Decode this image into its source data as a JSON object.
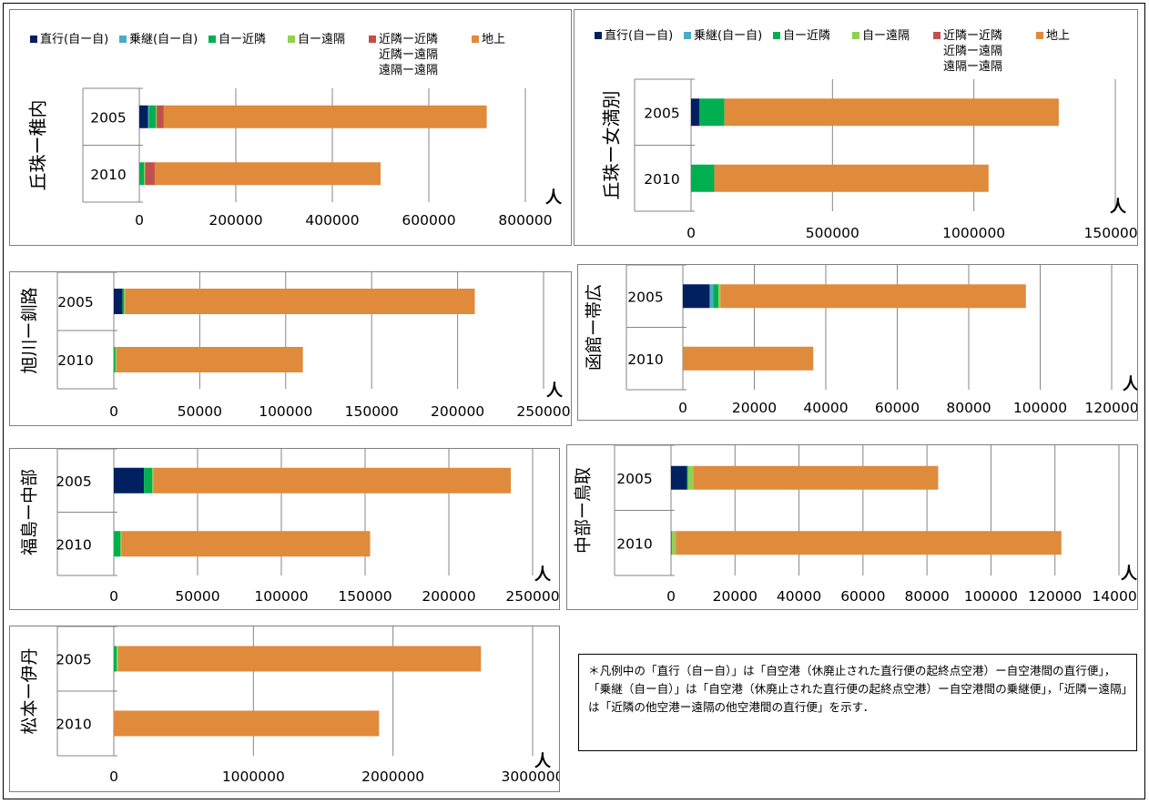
{
  "legend": {
    "items": [
      {
        "label": "直行(自ー自)",
        "color": "#002060"
      },
      {
        "label": "乗継(自ー自)",
        "color": "#4bacc6"
      },
      {
        "label": "自ー近隣",
        "color": "#00b050"
      },
      {
        "label": "自ー遠隔",
        "color": "#92d050"
      },
      {
        "label": "近隣ー近隣",
        "sublabels": [
          "近隣ー遠隔",
          "遠隔ー遠隔"
        ],
        "color": "#c0504d"
      },
      {
        "label": "地上",
        "color": "#e08a3c"
      }
    ]
  },
  "unit_label": "人",
  "note": "＊凡例中の「直行（自ー自）」は「自空港（休廃止された直行便の起終点空港）ー自空港間の直行便」，「乗継（自ー自）」は「自空港（休廃止された直行便の起終点空港）ー自空港間の乗継便」，「近隣ー遠隔」は「近隣の他空港ー遠隔の他空港間の直行便」を示す．",
  "chart_data": [
    {
      "type": "bar",
      "orientation": "horizontal",
      "stacked": true,
      "title": "丘珠ー稚内",
      "categories": [
        "2005",
        "2010"
      ],
      "xlim": [
        0,
        800000
      ],
      "ticks": [
        0,
        200000,
        400000,
        600000,
        800000
      ],
      "series": [
        {
          "name": "直行(自ー自)",
          "values": [
            18000,
            0
          ]
        },
        {
          "name": "乗継(自ー自)",
          "values": [
            2000,
            0
          ]
        },
        {
          "name": "自ー近隣",
          "values": [
            14000,
            10000
          ]
        },
        {
          "name": "自ー遠隔",
          "values": [
            2000,
            2000
          ]
        },
        {
          "name": "近隣ー近隣",
          "values": [
            14000,
            20000
          ]
        },
        {
          "name": "地上",
          "values": [
            670000,
            468000
          ]
        }
      ]
    },
    {
      "type": "bar",
      "orientation": "horizontal",
      "stacked": true,
      "title": "丘珠ー女満別",
      "categories": [
        "2005",
        "2010"
      ],
      "xlim": [
        0,
        1500000
      ],
      "ticks": [
        0,
        500000,
        1000000,
        1500000
      ],
      "series": [
        {
          "name": "直行(自ー自)",
          "values": [
            30000,
            0
          ]
        },
        {
          "name": "乗継(自ー自)",
          "values": [
            0,
            0
          ]
        },
        {
          "name": "自ー近隣",
          "values": [
            88000,
            82000
          ]
        },
        {
          "name": "自ー遠隔",
          "values": [
            0,
            0
          ]
        },
        {
          "name": "近隣ー近隣",
          "values": [
            0,
            0
          ]
        },
        {
          "name": "地上",
          "values": [
            1182000,
            970000
          ]
        }
      ]
    },
    {
      "type": "bar",
      "orientation": "horizontal",
      "stacked": true,
      "title": "旭川ー釧路",
      "categories": [
        "2005",
        "2010"
      ],
      "xlim": [
        0,
        250000
      ],
      "ticks": [
        0,
        50000,
        100000,
        150000,
        200000,
        250000
      ],
      "series": [
        {
          "name": "直行(自ー自)",
          "values": [
            5000,
            0
          ]
        },
        {
          "name": "乗継(自ー自)",
          "values": [
            0,
            0
          ]
        },
        {
          "name": "自ー近隣",
          "values": [
            1000,
            1000
          ]
        },
        {
          "name": "自ー遠隔",
          "values": [
            500,
            500
          ]
        },
        {
          "name": "近隣ー近隣",
          "values": [
            0,
            0
          ]
        },
        {
          "name": "地上",
          "values": [
            203500,
            108500
          ]
        }
      ]
    },
    {
      "type": "bar",
      "orientation": "horizontal",
      "stacked": true,
      "title": "函館ー帯広",
      "categories": [
        "2005",
        "2010"
      ],
      "xlim": [
        0,
        120000
      ],
      "ticks": [
        0,
        20000,
        40000,
        60000,
        80000,
        100000,
        120000
      ],
      "series": [
        {
          "name": "直行(自ー自)",
          "values": [
            7500,
            0
          ]
        },
        {
          "name": "乗継(自ー自)",
          "values": [
            1000,
            0
          ]
        },
        {
          "name": "自ー近隣",
          "values": [
            1500,
            0
          ]
        },
        {
          "name": "自ー遠隔",
          "values": [
            500,
            0
          ]
        },
        {
          "name": "近隣ー近隣",
          "values": [
            0,
            0
          ]
        },
        {
          "name": "地上",
          "values": [
            85500,
            36500
          ]
        }
      ]
    },
    {
      "type": "bar",
      "orientation": "horizontal",
      "stacked": true,
      "title": "福島ー中部",
      "categories": [
        "2005",
        "2010"
      ],
      "xlim": [
        0,
        250000
      ],
      "ticks": [
        0,
        50000,
        100000,
        150000,
        200000,
        250000
      ],
      "series": [
        {
          "name": "直行(自ー自)",
          "values": [
            18000,
            0
          ]
        },
        {
          "name": "乗継(自ー自)",
          "values": [
            0,
            0
          ]
        },
        {
          "name": "自ー近隣",
          "values": [
            5000,
            4000
          ]
        },
        {
          "name": "自ー遠隔",
          "values": [
            500,
            500
          ]
        },
        {
          "name": "近隣ー近隣",
          "values": [
            0,
            0
          ]
        },
        {
          "name": "地上",
          "values": [
            213500,
            148500
          ]
        }
      ]
    },
    {
      "type": "bar",
      "orientation": "horizontal",
      "stacked": true,
      "title": "中部ー鳥取",
      "categories": [
        "2005",
        "2010"
      ],
      "xlim": [
        0,
        140000
      ],
      "ticks": [
        0,
        20000,
        40000,
        60000,
        80000,
        100000,
        120000,
        140000
      ],
      "series": [
        {
          "name": "直行(自ー自)",
          "values": [
            5000,
            0
          ]
        },
        {
          "name": "乗継(自ー自)",
          "values": [
            0,
            0
          ]
        },
        {
          "name": "自ー近隣",
          "values": [
            300,
            300
          ]
        },
        {
          "name": "自ー遠隔",
          "values": [
            1700,
            1200
          ]
        },
        {
          "name": "近隣ー近隣",
          "values": [
            0,
            0
          ]
        },
        {
          "name": "地上",
          "values": [
            76500,
            120500
          ]
        }
      ]
    },
    {
      "type": "bar",
      "orientation": "horizontal",
      "stacked": true,
      "title": "松本ー伊丹",
      "categories": [
        "2005",
        "2010"
      ],
      "xlim": [
        0,
        3000000
      ],
      "ticks": [
        0,
        1000000,
        2000000,
        3000000
      ],
      "series": [
        {
          "name": "直行(自ー自)",
          "values": [
            0,
            0
          ]
        },
        {
          "name": "乗継(自ー自)",
          "values": [
            0,
            0
          ]
        },
        {
          "name": "自ー近隣",
          "values": [
            20000,
            0
          ]
        },
        {
          "name": "自ー遠隔",
          "values": [
            10000,
            0
          ]
        },
        {
          "name": "近隣ー近隣",
          "values": [
            0,
            0
          ]
        },
        {
          "name": "地上",
          "values": [
            2600000,
            1900000
          ]
        }
      ]
    }
  ]
}
